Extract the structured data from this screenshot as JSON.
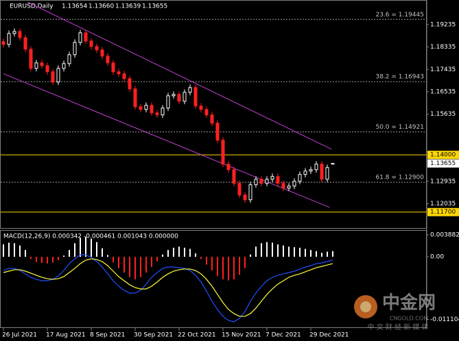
{
  "chart_data": [
    {
      "type": "candlestick",
      "title": "EURUSD,Daily",
      "last_bar_labels": [
        "1.13654",
        "1.13660",
        "1.13639",
        "1.13655"
      ],
      "categories": [
        "26 Jul 2021",
        null,
        null,
        null,
        null,
        null,
        null,
        null,
        "17 Aug 2021",
        null,
        null,
        null,
        null,
        null,
        null,
        null,
        "8 Sep 2021",
        null,
        null,
        null,
        null,
        null,
        null,
        null,
        "30 Sep 2021",
        null,
        null,
        null,
        null,
        null,
        null,
        null,
        "22 Oct 2021",
        null,
        null,
        null,
        null,
        null,
        null,
        null,
        "15 Nov 2021",
        null,
        null,
        null,
        null,
        null,
        null,
        null,
        "7 Dec 2021",
        null,
        null,
        null,
        null,
        null,
        null,
        null,
        "29 Dec 2021",
        null,
        null,
        null,
        null
      ],
      "open": [
        1.1855,
        1.18438,
        1.18878,
        1.1896,
        1.18713,
        1.18245,
        1.17475,
        1.17695,
        1.17585,
        1.17338,
        1.16925,
        1.17475,
        1.17668,
        1.18025,
        1.1852,
        1.18905,
        1.18575,
        1.18355,
        1.18218,
        1.1797,
        1.17695,
        1.17338,
        1.17255,
        1.17063,
        1.1665,
        1.15935,
        1.15825,
        1.1599,
        1.15688,
        1.15605,
        1.1588,
        1.16375,
        1.1643,
        1.16155,
        1.16513,
        1.16705,
        1.15963,
        1.15825,
        1.15605,
        1.15275,
        1.14588,
        1.13625,
        1.13405,
        1.12855,
        1.12388,
        1.12195,
        1.128,
        1.1302,
        1.12855,
        1.1302,
        1.1313,
        1.12855,
        1.12663,
        1.12745,
        1.12938,
        1.13213,
        1.1335,
        1.13405,
        1.13625,
        1.1302,
        1.13654
      ],
      "high": [
        1.1867,
        1.18998,
        1.1908,
        1.1908,
        1.18833,
        1.18365,
        1.17815,
        1.17815,
        1.17705,
        1.17458,
        1.17595,
        1.17788,
        1.18145,
        1.1864,
        1.19025,
        1.19025,
        1.18695,
        1.18475,
        1.18338,
        1.1809,
        1.17815,
        1.17458,
        1.17375,
        1.17183,
        1.1677,
        1.16055,
        1.1611,
        1.1611,
        1.15808,
        1.16,
        1.16495,
        1.1655,
        1.1655,
        1.16633,
        1.16825,
        1.16825,
        1.16083,
        1.15945,
        1.15725,
        1.15395,
        1.14708,
        1.13745,
        1.13525,
        1.12975,
        1.12508,
        1.1292,
        1.1314,
        1.1314,
        1.1314,
        1.1325,
        1.1325,
        1.12975,
        1.12865,
        1.13058,
        1.13333,
        1.1347,
        1.13525,
        1.13745,
        1.13745,
        1.13608,
        1.1366
      ],
      "low": [
        1.18318,
        1.18318,
        1.18758,
        1.18593,
        1.18125,
        1.17355,
        1.17355,
        1.17465,
        1.17218,
        1.16805,
        1.16805,
        1.17355,
        1.17548,
        1.17905,
        1.184,
        1.18455,
        1.18235,
        1.18098,
        1.1785,
        1.17575,
        1.17218,
        1.17135,
        1.16943,
        1.1653,
        1.15815,
        1.15705,
        1.15705,
        1.15568,
        1.15485,
        1.15485,
        1.1576,
        1.16255,
        1.16035,
        1.16035,
        1.16393,
        1.15843,
        1.15705,
        1.15485,
        1.15155,
        1.14468,
        1.13505,
        1.13285,
        1.12735,
        1.12268,
        1.12075,
        1.12075,
        1.1268,
        1.12735,
        1.12735,
        1.129,
        1.12735,
        1.12543,
        1.12543,
        1.12625,
        1.12818,
        1.13093,
        1.1323,
        1.13285,
        1.129,
        1.129,
        1.13639
      ],
      "close": [
        1.18438,
        1.18878,
        1.1896,
        1.18713,
        1.18245,
        1.17475,
        1.17695,
        1.17585,
        1.17338,
        1.16925,
        1.17475,
        1.17668,
        1.18025,
        1.1852,
        1.18905,
        1.18575,
        1.18355,
        1.18218,
        1.1797,
        1.17695,
        1.17338,
        1.17255,
        1.17063,
        1.1665,
        1.15935,
        1.15825,
        1.1599,
        1.15688,
        1.15605,
        1.1588,
        1.16375,
        1.1643,
        1.16155,
        1.16513,
        1.16705,
        1.15963,
        1.15825,
        1.15605,
        1.15275,
        1.14588,
        1.13625,
        1.13405,
        1.12855,
        1.12388,
        1.12195,
        1.128,
        1.1302,
        1.12855,
        1.1302,
        1.1313,
        1.12855,
        1.12663,
        1.12745,
        1.12938,
        1.13213,
        1.1335,
        1.13405,
        1.13625,
        1.1302,
        1.13488,
        1.13655
      ],
      "up_color": "#ffffff",
      "down_color": "#ff2020",
      "ylim": [
        1.1106,
        1.2014
      ],
      "yticks": [
        1.19235,
        1.18335,
        1.17435,
        1.16535,
        1.15635,
        1.12935,
        1.12035
      ],
      "levels": [
        {
          "value": 1.19445,
          "label": "23.6 = 1.19445"
        },
        {
          "value": 1.16943,
          "label": "38.2 = 1.16943"
        },
        {
          "value": 1.14921,
          "label": "50.0 = 1.14921"
        },
        {
          "value": 1.129,
          "label": "61.8 = 1.12900"
        }
      ],
      "level_color": "#a0a0a0",
      "hlines": [
        {
          "value": 1.14,
          "label": "1.14000"
        },
        {
          "value": 1.117,
          "label": "1.11700"
        }
      ],
      "hline_color": "#ffd700",
      "current_price": {
        "value": 1.13655,
        "label": "1.13655"
      },
      "trendlines": [
        [
          [
            4.4,
            1.2014
          ],
          [
            59.75,
            1.1423
          ]
        ],
        [
          [
            0,
            1.1726
          ],
          [
            59.4,
            1.1189
          ]
        ]
      ],
      "trendline_color": "#c040d0"
    },
    {
      "type": "macd",
      "title": "MACD(12,26,9) 0.000342 -0.000461 0.001043 0.000000",
      "histogram": [
        0.0022,
        0.0025,
        0.0024,
        0.002,
        0.0012,
        -0.0004,
        -0.0009,
        -0.0011,
        -0.0012,
        -0.001,
        -0.0006,
        0.0002,
        0.0012,
        0.0024,
        0.0033,
        0.0035,
        0.0032,
        0.0026,
        0.0015,
        0.0003,
        -0.001,
        -0.002,
        -0.0028,
        -0.0036,
        -0.004,
        -0.0036,
        -0.0028,
        -0.0018,
        -0.0008,
        0.0004,
        0.0012,
        0.0016,
        0.0018,
        0.0016,
        0.0014,
        0.0006,
        -0.0004,
        -0.0014,
        -0.0024,
        -0.0034,
        -0.004,
        -0.0042,
        -0.004,
        -0.0032,
        -0.002,
        0.0004,
        0.0018,
        0.0024,
        0.0026,
        0.0025,
        0.0022,
        0.002,
        0.0018,
        0.0017,
        0.0016,
        0.0014,
        0.0012,
        0.001,
        0.0007,
        0.0009,
        0.001
      ],
      "pos_color": "#ffffff",
      "neg_color": "#ff2020",
      "series": [
        {
          "color": "#2050ff",
          "values": [
            -0.00243,
            -0.00206,
            -0.00206,
            -0.00243,
            -0.00303,
            -0.00364,
            -0.004,
            -0.00425,
            -0.00425,
            -0.004,
            -0.0034,
            -0.00243,
            -0.00121,
            -0.00036,
            0.00036,
            0.00036,
            -0.00012,
            -0.00085,
            -0.00182,
            -0.00303,
            -0.00425,
            -0.00522,
            -0.00594,
            -0.00643,
            -0.00643,
            -0.00594,
            -0.00485,
            -0.00364,
            -0.00279,
            -0.00206,
            -0.00182,
            -0.00182,
            -0.00194,
            -0.00206,
            -0.00243,
            -0.00328,
            -0.00449,
            -0.00607,
            -0.00788,
            -0.00934,
            -0.01055,
            -0.01128,
            -0.01152,
            -0.01092,
            -0.0097,
            -0.00788,
            -0.00643,
            -0.00522,
            -0.00425,
            -0.00364,
            -0.00328,
            -0.00303,
            -0.00279,
            -0.00255,
            -0.00218,
            -0.00182,
            -0.00158,
            -0.00121,
            -0.00109,
            -0.00085,
            -0.00061
          ]
        },
        {
          "color": "#ffff40",
          "values": [
            -0.00279,
            -0.00255,
            -0.0023,
            -0.0023,
            -0.00255,
            -0.00291,
            -0.00328,
            -0.00364,
            -0.00388,
            -0.004,
            -0.00388,
            -0.00352,
            -0.00279,
            -0.00206,
            -0.00121,
            -0.00061,
            -0.00036,
            -0.00049,
            -0.00085,
            -0.00158,
            -0.00255,
            -0.00352,
            -0.00425,
            -0.00497,
            -0.00546,
            -0.0057,
            -0.0057,
            -0.00522,
            -0.00449,
            -0.00364,
            -0.00303,
            -0.00255,
            -0.0023,
            -0.00218,
            -0.00218,
            -0.00243,
            -0.00303,
            -0.004,
            -0.00522,
            -0.00667,
            -0.00813,
            -0.00934,
            -0.01007,
            -0.01055,
            -0.01055,
            -0.01007,
            -0.0091,
            -0.00788,
            -0.00667,
            -0.0057,
            -0.00485,
            -0.00425,
            -0.00364,
            -0.00328,
            -0.00303,
            -0.00267,
            -0.0023,
            -0.00194,
            -0.0017,
            -0.00146,
            -0.00121
          ]
        }
      ],
      "ylim": [
        -0.0125,
        0.00461
      ],
      "yticks": [
        0.003882,
        {
          "value": 0,
          "label": "0.00"
        },
        {
          "value": -0.011104,
          "label": "-0.011104"
        }
      ]
    }
  ],
  "watermark": {
    "brand": "中金网",
    "site": "CNGOLD.COM",
    "slogan": "中 文 财 经 新 媒 体"
  }
}
